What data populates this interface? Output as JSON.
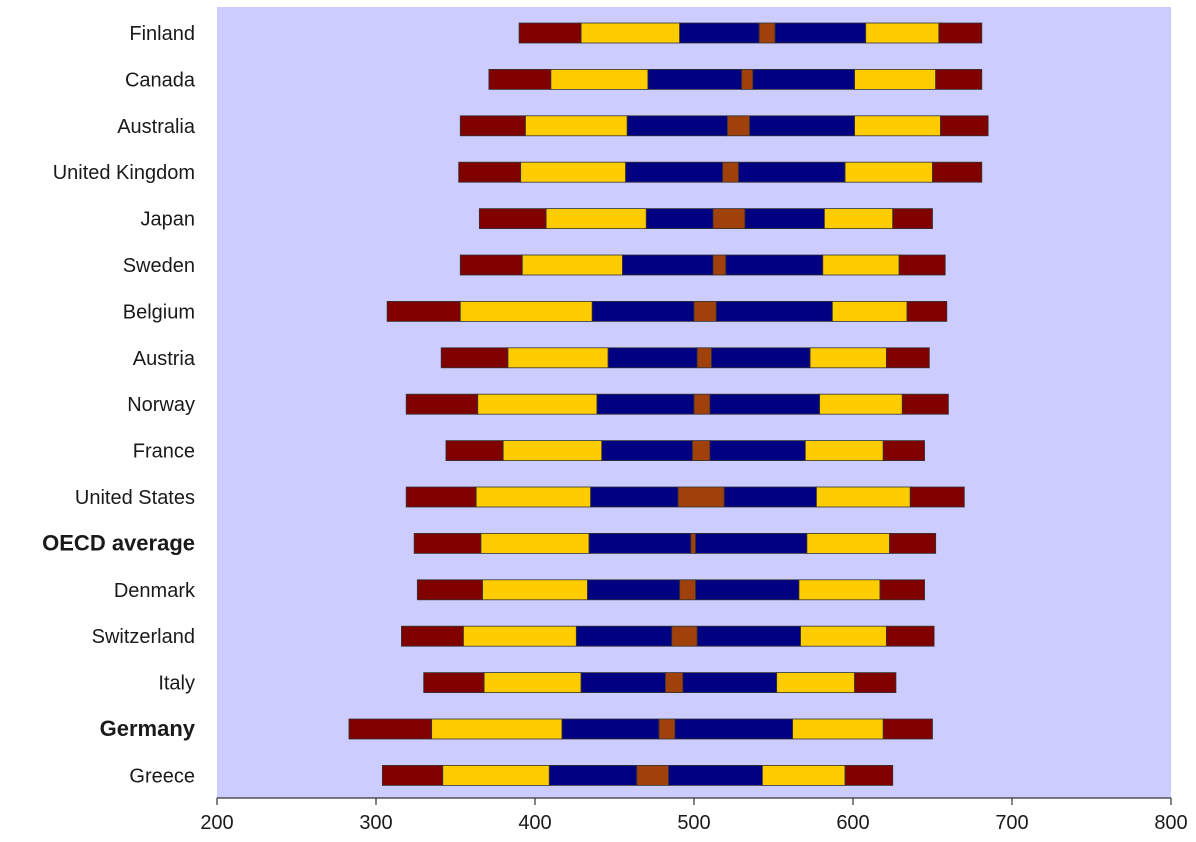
{
  "chart_data": {
    "type": "bar",
    "orientation": "horizontal",
    "xlim": [
      200,
      800
    ],
    "xticks": [
      "200",
      "300",
      "400",
      "500",
      "600",
      "700",
      "800"
    ],
    "grid": false,
    "colors": {
      "plot_background": "#ccccff",
      "outer_band": "#800000",
      "middle_band": "#ffcc00",
      "inner_band": "#000080",
      "mean_interval": "#a0400a"
    },
    "categories": [
      "Finland",
      "Canada",
      "Australia",
      "United Kingdom",
      "Japan",
      "Sweden",
      "Belgium",
      "Austria",
      "Norway",
      "France",
      "United States",
      "OECD average",
      "Denmark",
      "Switzerland",
      "Italy",
      "Germany",
      "Greece"
    ],
    "bold_categories": [
      "OECD average",
      "Germany"
    ],
    "rows": [
      {
        "name": "Finland",
        "breaks": [
          390,
          429,
          491,
          541,
          551,
          608,
          654,
          681
        ]
      },
      {
        "name": "Canada",
        "breaks": [
          371,
          410,
          471,
          530,
          537,
          601,
          652,
          681
        ]
      },
      {
        "name": "Australia",
        "breaks": [
          353,
          394,
          458,
          521,
          535,
          601,
          655,
          685
        ]
      },
      {
        "name": "United Kingdom",
        "breaks": [
          352,
          391,
          457,
          518,
          528,
          595,
          650,
          681
        ]
      },
      {
        "name": "Japan",
        "breaks": [
          365,
          407,
          470,
          512,
          532,
          582,
          625,
          650
        ]
      },
      {
        "name": "Sweden",
        "breaks": [
          353,
          392,
          455,
          512,
          520,
          581,
          629,
          658
        ]
      },
      {
        "name": "Belgium",
        "breaks": [
          307,
          353,
          436,
          500,
          514,
          587,
          634,
          659
        ]
      },
      {
        "name": "Austria",
        "breaks": [
          341,
          383,
          446,
          502,
          511,
          573,
          621,
          648
        ]
      },
      {
        "name": "Norway",
        "breaks": [
          319,
          364,
          439,
          500,
          510,
          579,
          631,
          660
        ]
      },
      {
        "name": "France",
        "breaks": [
          344,
          380,
          442,
          499,
          510,
          570,
          619,
          645
        ]
      },
      {
        "name": "United States",
        "breaks": [
          319,
          363,
          435,
          490,
          519,
          577,
          636,
          670
        ]
      },
      {
        "name": "OECD average",
        "breaks": [
          324,
          366,
          434,
          498,
          501,
          571,
          623,
          652
        ]
      },
      {
        "name": "Denmark",
        "breaks": [
          326,
          367,
          433,
          491,
          501,
          566,
          617,
          645
        ]
      },
      {
        "name": "Switzerland",
        "breaks": [
          316,
          355,
          426,
          486,
          502,
          567,
          621,
          651
        ]
      },
      {
        "name": "Italy",
        "breaks": [
          330,
          368,
          429,
          482,
          493,
          552,
          601,
          627
        ]
      },
      {
        "name": "Germany",
        "breaks": [
          283,
          335,
          417,
          478,
          488,
          562,
          619,
          650
        ]
      },
      {
        "name": "Greece",
        "breaks": [
          304,
          342,
          409,
          464,
          484,
          543,
          595,
          625
        ]
      }
    ]
  }
}
